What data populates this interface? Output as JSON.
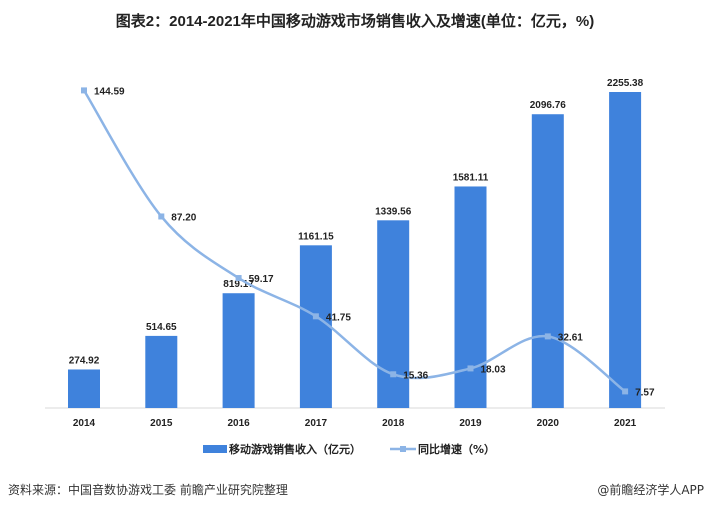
{
  "title": "图表2：2014-2021年中国移动游戏市场销售收入及增速(单位：亿元，%)",
  "source": "资料来源：中国音数协游戏工委 前瞻产业研究院整理",
  "credit": "@前瞻经济学人APP",
  "chart_data": {
    "type": "bar+line",
    "title": "图表2：2014-2021年中国移动游戏市场销售收入及增速(单位：亿元，%)",
    "categories": [
      "2014",
      "2015",
      "2016",
      "2017",
      "2018",
      "2019",
      "2020",
      "2021"
    ],
    "series": [
      {
        "name": "移动游戏销售收入（亿元）",
        "type": "bar",
        "color": "#3f82dc",
        "values": [
          274.92,
          514.65,
          819.17,
          1161.15,
          1339.56,
          1581.11,
          2096.76,
          2255.38
        ],
        "labels": [
          "274.92",
          "514.65",
          "819.17",
          "1161.15",
          "1339.56",
          "1581.11",
          "2096.76",
          "2255.38"
        ]
      },
      {
        "name": "同比增速（%）",
        "type": "line",
        "color": "#8cb4e6",
        "values": [
          144.59,
          87.2,
          59.17,
          41.75,
          15.36,
          18.03,
          32.61,
          7.57
        ],
        "labels": [
          "144.59",
          "87.20",
          "59.17",
          "41.75",
          "15.36",
          "18.03",
          "32.61",
          "7.57"
        ]
      }
    ],
    "legend": "bottom",
    "grid": false
  }
}
